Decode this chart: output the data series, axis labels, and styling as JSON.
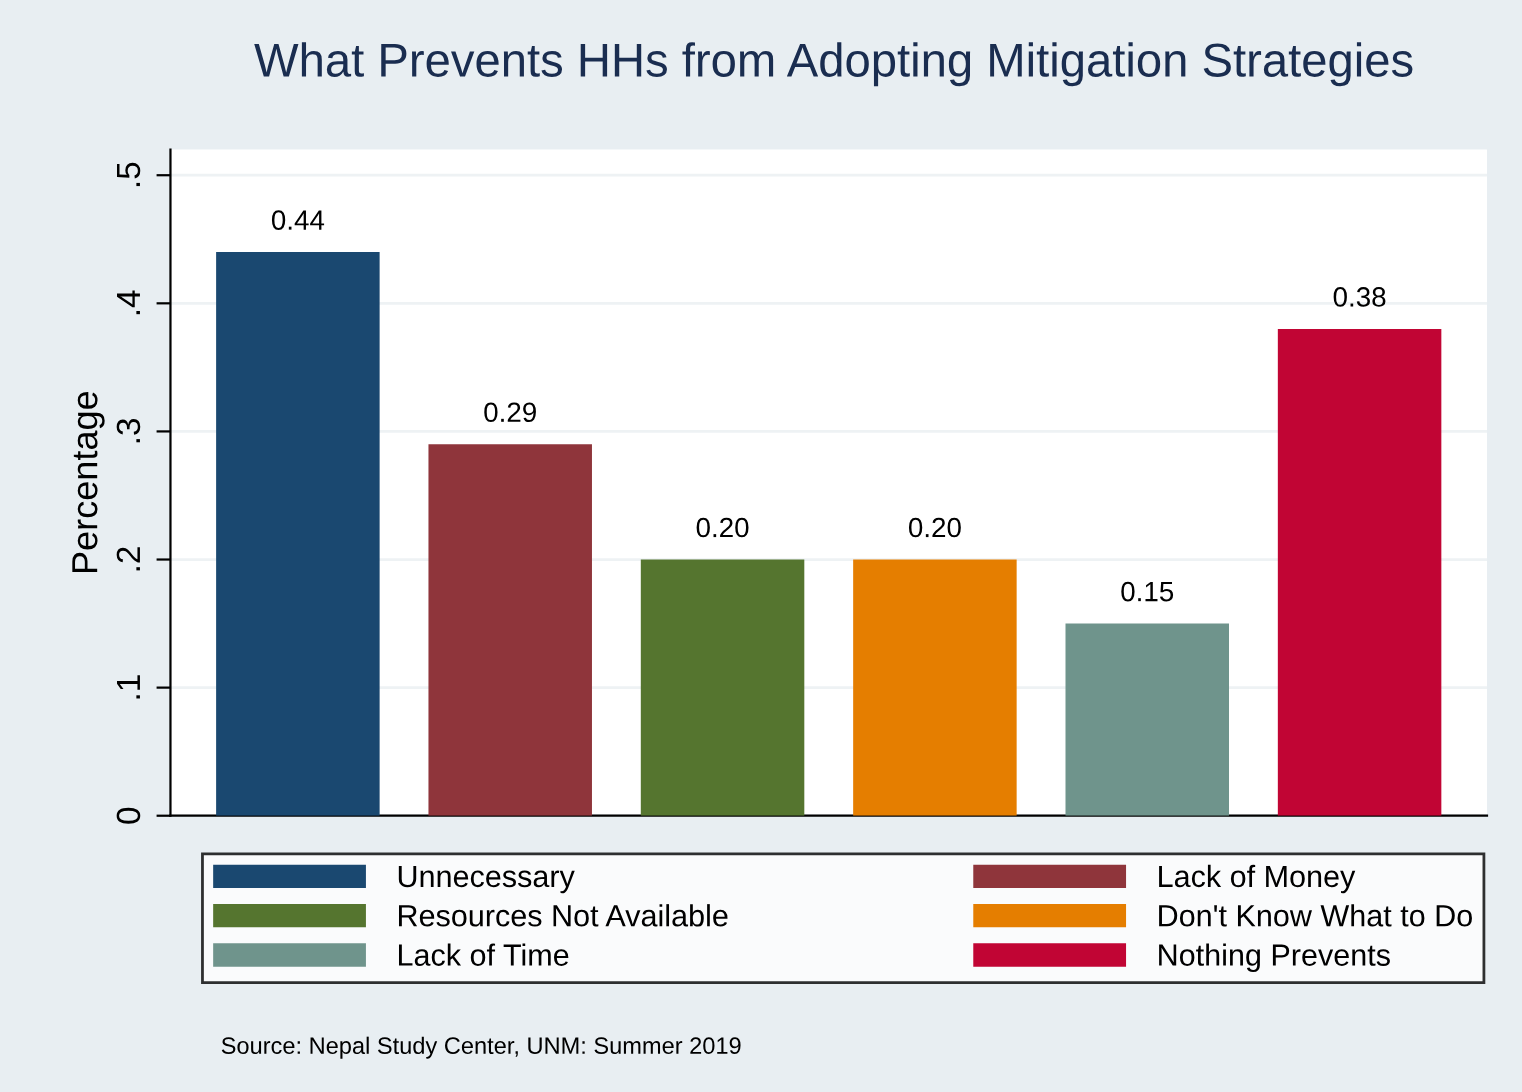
{
  "chart_data": {
    "type": "bar",
    "title": "What Prevents HHs from Adopting Mitigation Strategies",
    "ylabel": "Percentage",
    "categories": [
      null,
      null,
      null,
      null,
      null,
      null
    ],
    "series": [
      {
        "name": "Unnecessary",
        "color": "#1a4870",
        "values": [
          0.44,
          null,
          null,
          null,
          null,
          null
        ],
        "value_labels": [
          "0.44",
          null,
          null,
          null,
          null,
          null
        ]
      },
      {
        "name": "Lack of Money",
        "color": "#8f353b",
        "values": [
          null,
          0.29,
          null,
          null,
          null,
          null
        ],
        "value_labels": [
          null,
          "0.29",
          null,
          null,
          null,
          null
        ]
      },
      {
        "name": "Resources Not Available",
        "color": "#55752f",
        "values": [
          null,
          null,
          0.2,
          null,
          null,
          null
        ],
        "value_labels": [
          null,
          null,
          "0.20",
          null,
          null,
          null
        ]
      },
      {
        "name": "Don't Know What to Do",
        "color": "#e57e00",
        "values": [
          null,
          null,
          null,
          0.2,
          null,
          null
        ],
        "value_labels": [
          null,
          null,
          null,
          "0.20",
          null,
          null
        ]
      },
      {
        "name": "Lack of Time",
        "color": "#6f948c",
        "values": [
          null,
          null,
          null,
          null,
          0.15,
          null
        ],
        "value_labels": [
          null,
          null,
          null,
          null,
          "0.15",
          null
        ]
      },
      {
        "name": "Nothing Prevents",
        "color": "#c10534",
        "values": [
          null,
          null,
          null,
          null,
          null,
          0.38
        ],
        "value_labels": [
          null,
          null,
          null,
          null,
          null,
          "0.38"
        ]
      }
    ],
    "ylim": [
      0,
      0.52
    ],
    "yticks": [
      0,
      {
        "value": 0.1,
        "label": ".1"
      },
      {
        "value": 0.2,
        "label": ".2"
      },
      {
        "value": 0.3,
        "label": ".3"
      },
      {
        "value": 0.4,
        "label": ".4"
      },
      {
        "value": 0.5,
        "label": ".5"
      }
    ],
    "grid": "y",
    "legend": "bottom",
    "tick_labels": "y",
    "annotations": [
      "Source: Nepal Study Center, UNM: Summer 2019"
    ]
  }
}
